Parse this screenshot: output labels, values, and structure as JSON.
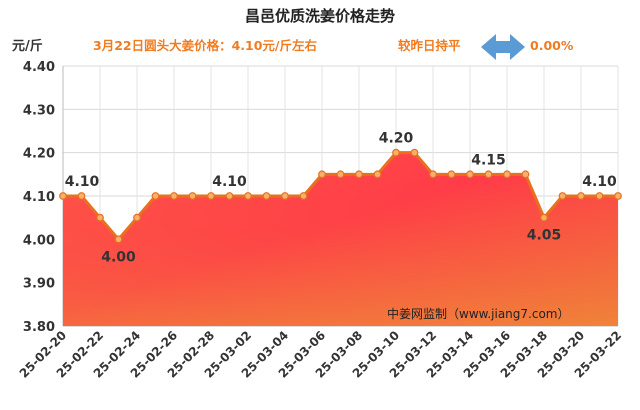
{
  "chart_data": {
    "type": "area",
    "title": "昌邑优质洗姜价格走势",
    "subtitle": "3月22日圆头大姜价格：4.10元/斤左右",
    "comparison_label": "较昨日持平",
    "change_value": "0.00%",
    "ylabel": "元/斤",
    "ylim": [
      3.8,
      4.4
    ],
    "yticks": [
      "3.80",
      "3.90",
      "4.00",
      "4.10",
      "4.20",
      "4.30",
      "4.40"
    ],
    "x": [
      "25-02-20",
      "25-02-21",
      "25-02-22",
      "25-02-23",
      "25-02-24",
      "25-02-25",
      "25-02-26",
      "25-02-27",
      "25-02-28",
      "25-03-01",
      "25-03-02",
      "25-03-03",
      "25-03-04",
      "25-03-05",
      "25-03-06",
      "25-03-07",
      "25-03-08",
      "25-03-09",
      "25-03-10",
      "25-03-11",
      "25-03-12",
      "25-03-13",
      "25-03-14",
      "25-03-15",
      "25-03-16",
      "25-03-17",
      "25-03-18",
      "25-03-19",
      "25-03-20",
      "25-03-21",
      "25-03-22"
    ],
    "xtick_labels": [
      "25-02-20",
      "25-02-22",
      "25-02-24",
      "25-02-26",
      "25-02-28",
      "25-03-02",
      "25-03-04",
      "25-03-06",
      "25-03-08",
      "25-03-10",
      "25-03-12",
      "25-03-14",
      "25-03-16",
      "25-03-18",
      "25-03-20",
      "25-03-22"
    ],
    "values": [
      4.1,
      4.1,
      4.05,
      4.0,
      4.05,
      4.1,
      4.1,
      4.1,
      4.1,
      4.1,
      4.1,
      4.1,
      4.1,
      4.1,
      4.15,
      4.15,
      4.15,
      4.15,
      4.2,
      4.2,
      4.15,
      4.15,
      4.15,
      4.15,
      4.15,
      4.15,
      4.05,
      4.1,
      4.1,
      4.1,
      4.1
    ],
    "data_labels": [
      {
        "index": 0,
        "text": "4.10"
      },
      {
        "index": 3,
        "text": "4.00"
      },
      {
        "index": 9,
        "text": "4.10"
      },
      {
        "index": 18,
        "text": "4.20"
      },
      {
        "index": 23,
        "text": "4.15"
      },
      {
        "index": 26,
        "text": "4.05"
      },
      {
        "index": 29,
        "text": "4.10"
      }
    ],
    "source": "中姜网监制（www.jiang7.com）",
    "colors": {
      "line": "#f07c22",
      "marker": "#f5a55a",
      "area_top": "#ff3a46",
      "area_bottom": "#f07a3a",
      "arrow": "#5b9bd5",
      "accent_text": "#f07c22"
    }
  }
}
